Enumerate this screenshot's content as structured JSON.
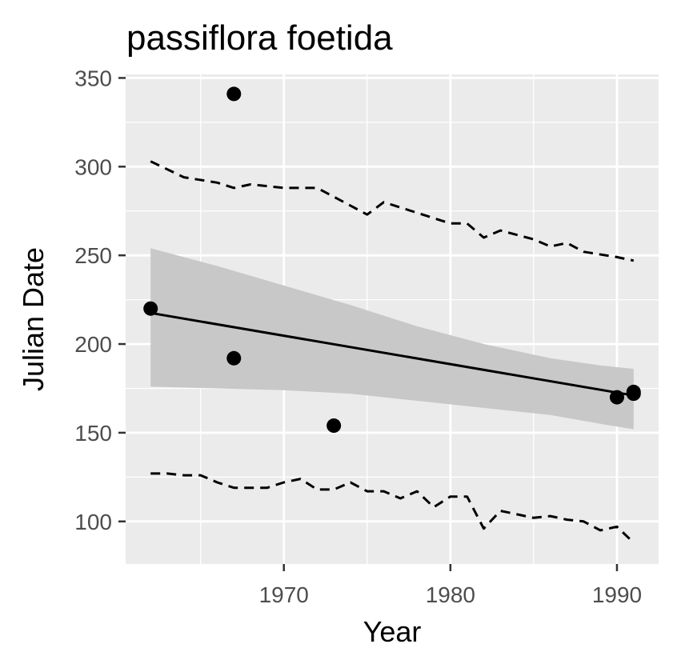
{
  "chart_data": {
    "type": "scatter",
    "title": "passiflora foetida",
    "xlabel": "Year",
    "ylabel": "Julian Date",
    "xlim": [
      1960.5,
      1992.5
    ],
    "ylim": [
      76,
      352
    ],
    "x_major_ticks": [
      1970,
      1980,
      1990
    ],
    "x_minor_ticks": [
      1965,
      1975,
      1985
    ],
    "y_major_ticks": [
      100,
      150,
      200,
      250,
      300,
      350
    ],
    "y_minor_ticks": [
      125,
      175,
      225,
      275,
      325
    ],
    "grid": true,
    "legend": "none",
    "colors": {
      "panel": "#ebebeb",
      "grid": "#ffffff",
      "points": "#000000",
      "ribbon": "#c8c8c8",
      "tick_text": "#4d4d4d"
    },
    "points": {
      "x": [
        1962,
        1967,
        1967,
        1973,
        1990,
        1991,
        1991
      ],
      "y": [
        220,
        341,
        192,
        154,
        170,
        172,
        173
      ]
    },
    "trend_line": {
      "x": [
        1962,
        1991
      ],
      "y": [
        217.5,
        171
      ]
    },
    "confidence_band": {
      "x": [
        1962,
        1966,
        1970,
        1974,
        1978,
        1982,
        1986,
        1989,
        1991
      ],
      "upper": [
        254,
        244,
        233,
        222,
        210,
        200,
        192,
        188,
        186
      ],
      "lower": [
        176,
        175,
        174,
        172,
        168,
        164,
        160,
        155,
        152
      ]
    },
    "upper_dashed": {
      "x": [
        1962,
        1964,
        1966,
        1967,
        1968,
        1970,
        1972,
        1974,
        1975,
        1976,
        1978,
        1980,
        1981,
        1982,
        1983,
        1985,
        1986,
        1987,
        1988,
        1990,
        1991
      ],
      "y": [
        303,
        294,
        291,
        288,
        290,
        288,
        288,
        278,
        273,
        280,
        274,
        268,
        268,
        260,
        264,
        259,
        255,
        257,
        252,
        249,
        247
      ]
    },
    "lower_dashed": {
      "x": [
        1962,
        1963,
        1964,
        1965,
        1966,
        1967,
        1968,
        1969,
        1970,
        1971,
        1972,
        1973,
        1974,
        1975,
        1976,
        1977,
        1978,
        1979,
        1980,
        1981,
        1982,
        1983,
        1984,
        1985,
        1986,
        1987,
        1988,
        1989,
        1990,
        1991
      ],
      "y": [
        127,
        127,
        126,
        126,
        122,
        119,
        119,
        119,
        122,
        124,
        118,
        118,
        122,
        117,
        117,
        113,
        117,
        108,
        114,
        114,
        96,
        106,
        104,
        102,
        103,
        101,
        100,
        95,
        97,
        88
      ]
    }
  }
}
